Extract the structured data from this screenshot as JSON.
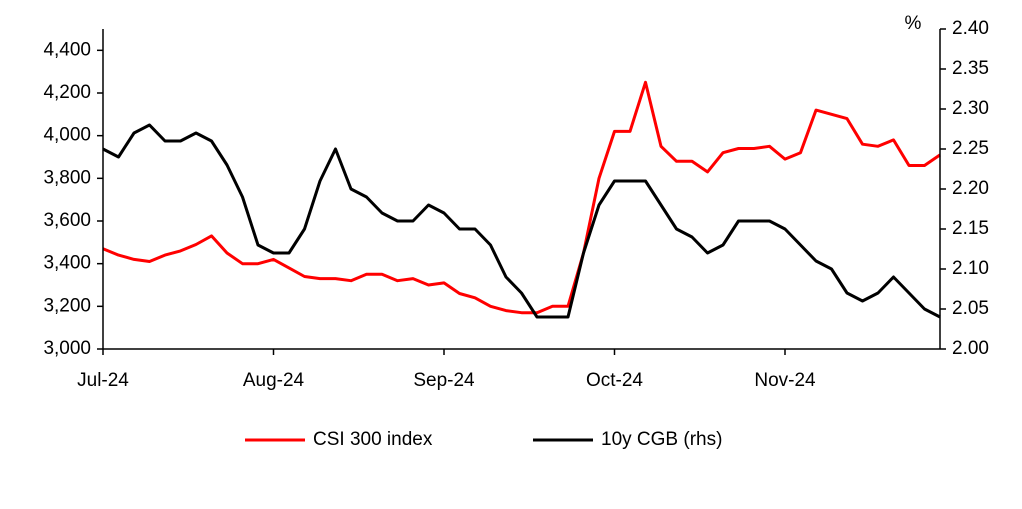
{
  "chart_data": {
    "type": "line",
    "categories": [
      "Jul-24",
      null,
      null,
      null,
      null,
      null,
      null,
      null,
      null,
      null,
      null,
      "Aug-24",
      null,
      null,
      null,
      null,
      null,
      null,
      null,
      null,
      null,
      null,
      "Sep-24",
      null,
      null,
      null,
      null,
      null,
      null,
      null,
      null,
      null,
      null,
      "Oct-24",
      null,
      null,
      null,
      null,
      null,
      null,
      null,
      null,
      null,
      null,
      "Nov-24",
      null,
      null,
      null,
      null,
      null,
      null,
      null,
      null,
      null,
      null
    ],
    "y2_label": "%",
    "series": [
      {
        "name": "CSI 300 index",
        "color": "#ff0000",
        "values": [
          3470,
          3440,
          3420,
          3410,
          3440,
          3460,
          3490,
          3530,
          3450,
          3400,
          3400,
          3420,
          3380,
          3340,
          3330,
          3330,
          3320,
          3350,
          3350,
          3320,
          3330,
          3300,
          3310,
          3260,
          3240,
          3200,
          3180,
          3170,
          3170,
          3200,
          3200,
          3450,
          3800,
          4020,
          4020,
          4250,
          3950,
          3880,
          3880,
          3830,
          3920,
          3940,
          3940,
          3950,
          3890,
          3920,
          4120,
          4100,
          4080,
          3960,
          3950,
          3980,
          3860,
          3860,
          3910
        ]
      },
      {
        "name": "10y CGB (rhs)",
        "color": "#000000",
        "axis": "y2",
        "values": [
          2.25,
          2.24,
          2.27,
          2.28,
          2.26,
          2.26,
          2.27,
          2.26,
          2.23,
          2.19,
          2.13,
          2.12,
          2.12,
          2.15,
          2.21,
          2.25,
          2.2,
          2.19,
          2.17,
          2.16,
          2.16,
          2.18,
          2.17,
          2.15,
          2.15,
          2.13,
          2.09,
          2.07,
          2.04,
          2.04,
          2.04,
          2.12,
          2.18,
          2.21,
          2.21,
          2.21,
          2.18,
          2.15,
          2.14,
          2.12,
          2.13,
          2.16,
          2.16,
          2.16,
          2.15,
          2.13,
          2.11,
          2.1,
          2.07,
          2.06,
          2.07,
          2.09,
          2.07,
          2.05,
          2.04
        ]
      }
    ],
    "ylim": [
      3000,
      4500
    ],
    "yticks": [
      {
        "value": 3000,
        "label": "3,000"
      },
      {
        "value": 3200,
        "label": "3,200"
      },
      {
        "value": 3400,
        "label": "3,400"
      },
      {
        "value": 3600,
        "label": "3,600"
      },
      {
        "value": 3800,
        "label": "3,800"
      },
      {
        "value": 4000,
        "label": "4,000"
      },
      {
        "value": 4200,
        "label": "4,200"
      },
      {
        "value": 4400,
        "label": "4,400"
      }
    ],
    "y2lim": [
      2.0,
      2.4
    ],
    "y2ticks": [
      {
        "value": 2.0,
        "label": "2.00"
      },
      2.05,
      {
        "value": 2.1,
        "label": "2.10"
      },
      2.15,
      {
        "value": 2.2,
        "label": "2.20"
      },
      2.25,
      {
        "value": 2.3,
        "label": "2.30"
      },
      2.35,
      {
        "value": 2.4,
        "label": "2.40"
      }
    ],
    "legend": "bottom"
  }
}
